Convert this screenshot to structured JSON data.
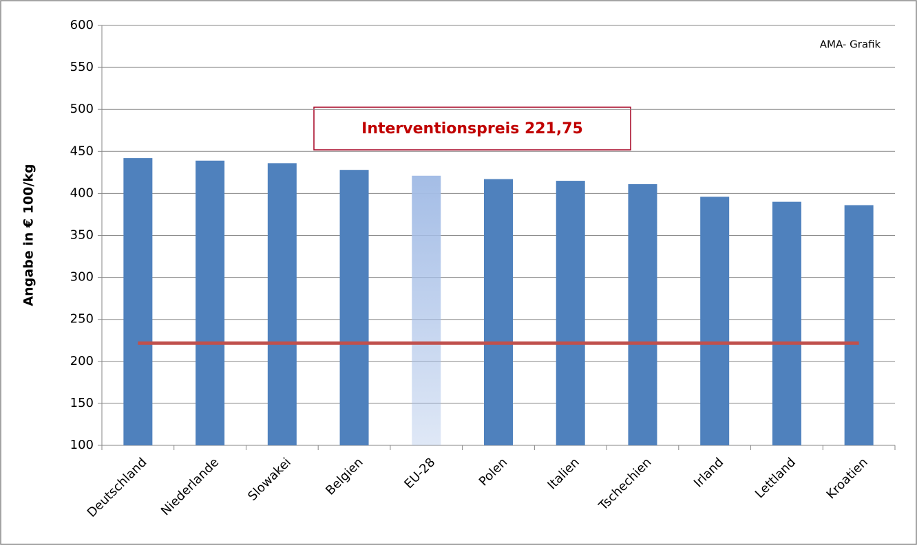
{
  "chart_data": {
    "type": "bar",
    "y_label": "Angabe in € 100/kg",
    "source_note": "AMA- Grafik",
    "annotation": "Interventionspreis 221,75",
    "categories": [
      "Deutschland",
      "Niederlande",
      "Slowakei",
      "Belgien",
      "EU-28",
      "Polen",
      "Italien",
      "Tschechien",
      "Irland",
      "Lettland",
      "Kroatien"
    ],
    "values": [
      442,
      439,
      436,
      428,
      421,
      417,
      415,
      411,
      396,
      390,
      386
    ],
    "colors": [
      "#4f81bd",
      "#4f81bd",
      "#4f81bd",
      "#4f81bd",
      "#a4bde6",
      "#4f81bd",
      "#4f81bd",
      "#4f81bd",
      "#4f81bd",
      "#4f81bd",
      "#4f81bd"
    ],
    "reference_line": {
      "value": 221.75,
      "color": "#c0504d"
    },
    "ylim": [
      100,
      600
    ],
    "yticks": [
      100,
      150,
      200,
      250,
      300,
      350,
      400,
      450,
      500,
      550,
      600
    ],
    "grid": true
  }
}
